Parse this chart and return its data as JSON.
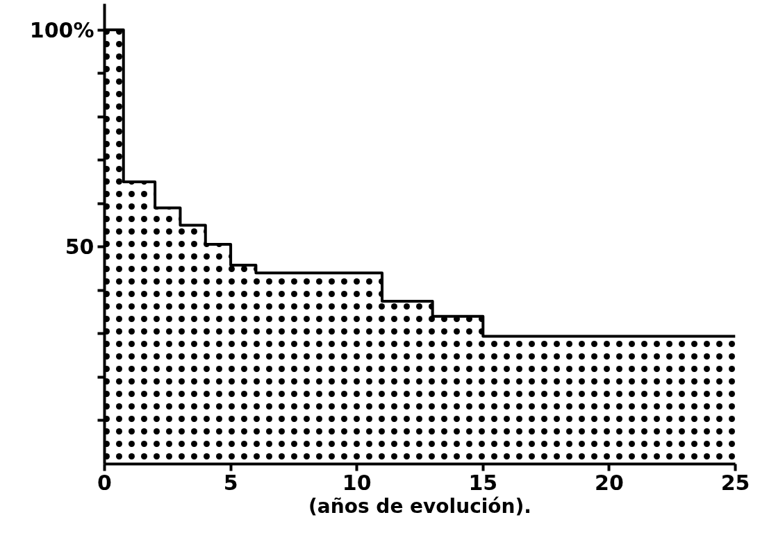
{
  "chart_data": {
    "type": "area",
    "xlabel": "(años de evolución).",
    "x": [
      0,
      0.75,
      0.75,
      2,
      2,
      3,
      3,
      4,
      4,
      5,
      5,
      6,
      6,
      11,
      11,
      13,
      13,
      15,
      15,
      25
    ],
    "series": [
      {
        "color": "#000000",
        "values": [
          100,
          100,
          65,
          65,
          59,
          59,
          55,
          55,
          50.6,
          50.6,
          45.8,
          45.8,
          44,
          44,
          37.5,
          37.5,
          34,
          34,
          29.4,
          29.4
        ]
      }
    ],
    "xlim": [
      0,
      25
    ],
    "xticks": [
      0,
      5,
      10,
      15,
      20,
      25
    ],
    "ylim": [
      0,
      106
    ],
    "yticks": [
      {
        "value": 10,
        "label": null
      },
      {
        "value": 20,
        "label": null
      },
      {
        "value": 30,
        "label": null
      },
      {
        "value": 40,
        "label": null
      },
      50,
      {
        "value": 60,
        "label": null
      },
      {
        "value": 70,
        "label": null
      },
      {
        "value": 80,
        "label": null
      },
      {
        "value": 90,
        "label": null
      },
      {
        "value": 100,
        "label": "100%"
      }
    ],
    "grid": false,
    "marker": "none",
    "line_style": "solid"
  }
}
